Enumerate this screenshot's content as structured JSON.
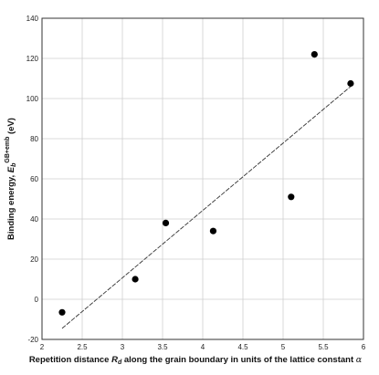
{
  "chart_data": {
    "type": "scatter",
    "xlabel": {
      "prefix": "Repetition distance ",
      "var": "R",
      "sub": "d",
      "suffix": " along the grain boundary in units of the lattice constant ",
      "sym": "α"
    },
    "ylabel": {
      "prefix": "Binding energy, ",
      "var": "E",
      "sub": "b",
      "sup": "GB+emb",
      "suffix": " (eV)"
    },
    "xlim": [
      2,
      6
    ],
    "ylim": [
      -20,
      140
    ],
    "x_ticks": [
      "2",
      "2.5",
      "3",
      "3.5",
      "4",
      "4.5",
      "5",
      "5.5",
      "6"
    ],
    "y_ticks": [
      "-20",
      "0",
      "20",
      "40",
      "60",
      "80",
      "100",
      "120",
      "140"
    ],
    "grid": true,
    "points": [
      {
        "x": 2.25,
        "y": -6.5
      },
      {
        "x": 3.16,
        "y": 10.0
      },
      {
        "x": 3.54,
        "y": 38.0
      },
      {
        "x": 4.13,
        "y": 34.0
      },
      {
        "x": 5.1,
        "y": 51.0
      },
      {
        "x": 5.39,
        "y": 122.0
      },
      {
        "x": 5.84,
        "y": 107.5
      }
    ],
    "fit_line": {
      "x": [
        2.25,
        5.84
      ],
      "y": [
        -14.5,
        106.0
      ],
      "style": "dashed"
    },
    "marker_color": "#000000",
    "line_color": "#333333"
  }
}
